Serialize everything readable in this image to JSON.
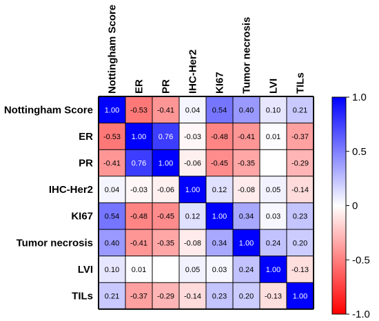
{
  "chart_data": {
    "type": "heatmap",
    "title": "",
    "xlabel": "",
    "ylabel": "",
    "variables": [
      "Nottingham Score",
      "ER",
      "PR",
      "IHC-Her2",
      "KI67",
      "Tumor necrosis",
      "LVI",
      "TILs"
    ],
    "matrix": [
      [
        1.0,
        -0.53,
        -0.41,
        0.04,
        0.54,
        0.4,
        0.1,
        0.21
      ],
      [
        -0.53,
        1.0,
        0.76,
        -0.03,
        -0.48,
        -0.41,
        0.01,
        -0.37
      ],
      [
        -0.41,
        0.76,
        1.0,
        -0.06,
        -0.45,
        -0.35,
        null,
        -0.29
      ],
      [
        0.04,
        -0.03,
        -0.06,
        1.0,
        0.12,
        -0.08,
        0.05,
        -0.14
      ],
      [
        0.54,
        -0.48,
        -0.45,
        0.12,
        1.0,
        0.34,
        0.03,
        0.23
      ],
      [
        0.4,
        -0.41,
        -0.35,
        -0.08,
        0.34,
        1.0,
        0.24,
        0.2
      ],
      [
        0.1,
        0.01,
        null,
        0.05,
        0.03,
        0.24,
        1.0,
        -0.13
      ],
      [
        0.21,
        -0.37,
        -0.29,
        -0.14,
        0.23,
        0.2,
        -0.13,
        1.0
      ]
    ],
    "colorbar": {
      "range": [
        -1.0,
        1.0
      ],
      "ticks": [
        "1.0",
        "0.5",
        "0",
        "-0.5",
        "-1.0"
      ],
      "tick_values": [
        1.0,
        0.5,
        0,
        -0.5,
        -1.0
      ],
      "colors": {
        "positive": "#0000ff",
        "zero": "#ffffff",
        "negative": "#ff0000"
      }
    }
  }
}
